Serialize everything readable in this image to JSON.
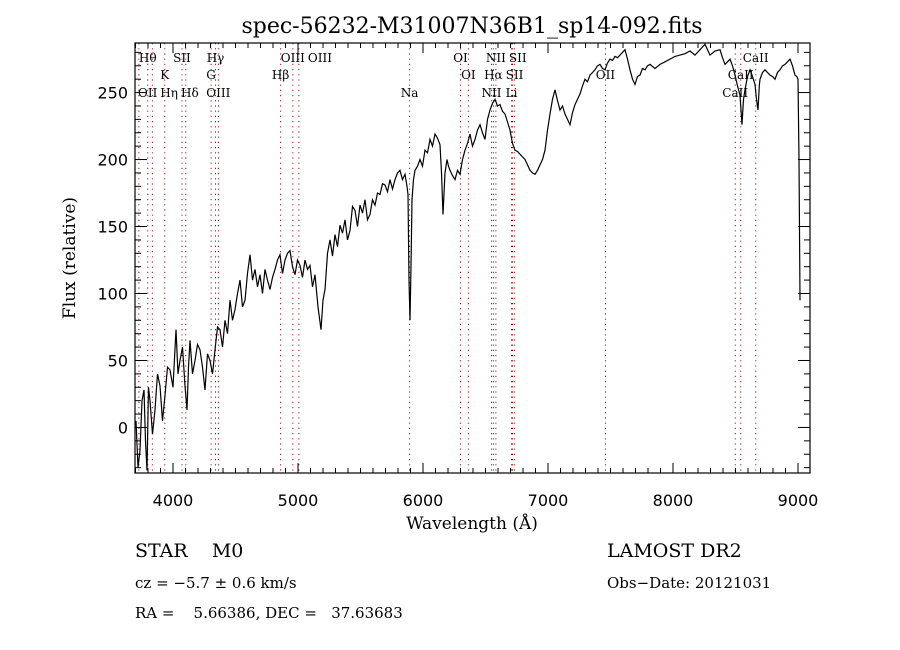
{
  "chart_data": {
    "type": "line",
    "title": "spec-56232-M31007N36B1_sp14-092.fits",
    "xlabel": "Wavelength (Å)",
    "ylabel": "Flux (relative)",
    "xlim": [
      3696,
      9096
    ],
    "ylim": [
      -34,
      287
    ],
    "xticks": [
      4000,
      5000,
      6000,
      7000,
      8000,
      9000
    ],
    "yticks": [
      0,
      50,
      100,
      150,
      200,
      250
    ],
    "grid": false,
    "series": [
      {
        "name": "spectrum",
        "points": [
          [
            3704,
            5
          ],
          [
            3720,
            -30
          ],
          [
            3736,
            -17
          ],
          [
            3752,
            20
          ],
          [
            3768,
            28
          ],
          [
            3780,
            -10
          ],
          [
            3792,
            -32
          ],
          [
            3804,
            30
          ],
          [
            3816,
            20
          ],
          [
            3836,
            -5
          ],
          [
            3856,
            13
          ],
          [
            3876,
            40
          ],
          [
            3896,
            31
          ],
          [
            3916,
            5
          ],
          [
            3936,
            24
          ],
          [
            3956,
            45
          ],
          [
            3976,
            43
          ],
          [
            4000,
            30
          ],
          [
            4024,
            73
          ],
          [
            4040,
            40
          ],
          [
            4056,
            50
          ],
          [
            4076,
            60
          ],
          [
            4096,
            31
          ],
          [
            4112,
            13
          ],
          [
            4124,
            45
          ],
          [
            4136,
            65
          ],
          [
            4156,
            40
          ],
          [
            4176,
            50
          ],
          [
            4196,
            62
          ],
          [
            4216,
            58
          ],
          [
            4236,
            45
          ],
          [
            4256,
            28
          ],
          [
            4276,
            55
          ],
          [
            4296,
            50
          ],
          [
            4316,
            40
          ],
          [
            4336,
            58
          ],
          [
            4356,
            75
          ],
          [
            4376,
            73
          ],
          [
            4396,
            60
          ],
          [
            4416,
            80
          ],
          [
            4436,
            70
          ],
          [
            4456,
            95
          ],
          [
            4476,
            80
          ],
          [
            4496,
            88
          ],
          [
            4516,
            100
          ],
          [
            4536,
            110
          ],
          [
            4556,
            90
          ],
          [
            4576,
            95
          ],
          [
            4596,
            115
          ],
          [
            4616,
            129
          ],
          [
            4636,
            110
          ],
          [
            4656,
            118
          ],
          [
            4676,
            105
          ],
          [
            4696,
            114
          ],
          [
            4716,
            100
          ],
          [
            4736,
            118
          ],
          [
            4756,
            110
          ],
          [
            4776,
            103
          ],
          [
            4796,
            112
          ],
          [
            4816,
            118
          ],
          [
            4836,
            125
          ],
          [
            4856,
            129
          ],
          [
            4876,
            115
          ],
          [
            4896,
            125
          ],
          [
            4916,
            130
          ],
          [
            4936,
            132
          ],
          [
            4956,
            120
          ],
          [
            4976,
            114
          ],
          [
            4996,
            125
          ],
          [
            5016,
            121
          ],
          [
            5036,
            112
          ],
          [
            5056,
            125
          ],
          [
            5076,
            118
          ],
          [
            5096,
            121
          ],
          [
            5116,
            105
          ],
          [
            5136,
            114
          ],
          [
            5160,
            90
          ],
          [
            5184,
            73
          ],
          [
            5200,
            95
          ],
          [
            5216,
            103
          ],
          [
            5236,
            130
          ],
          [
            5256,
            140
          ],
          [
            5276,
            128
          ],
          [
            5296,
            144
          ],
          [
            5316,
            135
          ],
          [
            5336,
            151
          ],
          [
            5356,
            145
          ],
          [
            5376,
            155
          ],
          [
            5396,
            140
          ],
          [
            5416,
            147
          ],
          [
            5436,
            165
          ],
          [
            5456,
            162
          ],
          [
            5476,
            150
          ],
          [
            5496,
            166
          ],
          [
            5516,
            160
          ],
          [
            5536,
            170
          ],
          [
            5556,
            155
          ],
          [
            5576,
            159
          ],
          [
            5596,
            170
          ],
          [
            5616,
            166
          ],
          [
            5636,
            175
          ],
          [
            5656,
            174
          ],
          [
            5676,
            182
          ],
          [
            5696,
            181
          ],
          [
            5716,
            176
          ],
          [
            5736,
            185
          ],
          [
            5756,
            178
          ],
          [
            5776,
            185
          ],
          [
            5796,
            190
          ],
          [
            5816,
            192
          ],
          [
            5836,
            185
          ],
          [
            5856,
            189
          ],
          [
            5872,
            180
          ],
          [
            5880,
            174
          ],
          [
            5888,
            110
          ],
          [
            5896,
            80
          ],
          [
            5904,
            120
          ],
          [
            5912,
            170
          ],
          [
            5924,
            185
          ],
          [
            5936,
            192
          ],
          [
            5956,
            195
          ],
          [
            5976,
            200
          ],
          [
            5996,
            195
          ],
          [
            6016,
            207
          ],
          [
            6036,
            205
          ],
          [
            6056,
            215
          ],
          [
            6076,
            210
          ],
          [
            6096,
            219
          ],
          [
            6116,
            216
          ],
          [
            6136,
            211
          ],
          [
            6148,
            190
          ],
          [
            6160,
            159
          ],
          [
            6176,
            190
          ],
          [
            6192,
            200
          ],
          [
            6204,
            195
          ],
          [
            6216,
            192
          ],
          [
            6236,
            188
          ],
          [
            6256,
            185
          ],
          [
            6276,
            192
          ],
          [
            6296,
            189
          ],
          [
            6316,
            200
          ],
          [
            6336,
            207
          ],
          [
            6356,
            212
          ],
          [
            6376,
            219
          ],
          [
            6396,
            210
          ],
          [
            6416,
            215
          ],
          [
            6436,
            222
          ],
          [
            6456,
            226
          ],
          [
            6476,
            220
          ],
          [
            6496,
            215
          ],
          [
            6516,
            230
          ],
          [
            6536,
            237
          ],
          [
            6556,
            242
          ],
          [
            6576,
            245
          ],
          [
            6596,
            240
          ],
          [
            6616,
            241
          ],
          [
            6636,
            236
          ],
          [
            6656,
            234
          ],
          [
            6676,
            228
          ],
          [
            6696,
            222
          ],
          [
            6716,
            212
          ],
          [
            6736,
            207
          ],
          [
            6756,
            206
          ],
          [
            6776,
            204
          ],
          [
            6796,
            202
          ],
          [
            6816,
            200
          ],
          [
            6836,
            196
          ],
          [
            6856,
            192
          ],
          [
            6876,
            190
          ],
          [
            6896,
            189
          ],
          [
            6916,
            192
          ],
          [
            6936,
            196
          ],
          [
            6956,
            200
          ],
          [
            6976,
            207
          ],
          [
            6996,
            222
          ],
          [
            7016,
            234
          ],
          [
            7036,
            245
          ],
          [
            7056,
            252
          ],
          [
            7076,
            244
          ],
          [
            7096,
            237
          ],
          [
            7116,
            240
          ],
          [
            7136,
            234
          ],
          [
            7156,
            230
          ],
          [
            7176,
            226
          ],
          [
            7196,
            235
          ],
          [
            7216,
            241
          ],
          [
            7236,
            245
          ],
          [
            7256,
            249
          ],
          [
            7276,
            255
          ],
          [
            7296,
            260
          ],
          [
            7316,
            258
          ],
          [
            7336,
            263
          ],
          [
            7356,
            265
          ],
          [
            7376,
            267
          ],
          [
            7396,
            270
          ],
          [
            7416,
            271
          ],
          [
            7436,
            268
          ],
          [
            7456,
            267
          ],
          [
            7476,
            272
          ],
          [
            7496,
            275
          ],
          [
            7516,
            274
          ],
          [
            7536,
            277
          ],
          [
            7556,
            276
          ],
          [
            7576,
            278
          ],
          [
            7596,
            280
          ],
          [
            7616,
            282
          ],
          [
            7636,
            275
          ],
          [
            7656,
            267
          ],
          [
            7676,
            260
          ],
          [
            7696,
            256
          ],
          [
            7716,
            262
          ],
          [
            7736,
            263
          ],
          [
            7756,
            268
          ],
          [
            7776,
            267
          ],
          [
            7796,
            270
          ],
          [
            7816,
            271
          ],
          [
            7856,
            268
          ],
          [
            7896,
            271
          ],
          [
            7936,
            273
          ],
          [
            7976,
            275
          ],
          [
            8016,
            277
          ],
          [
            8056,
            278
          ],
          [
            8096,
            279
          ],
          [
            8136,
            281
          ],
          [
            8176,
            278
          ],
          [
            8216,
            282
          ],
          [
            8236,
            284
          ],
          [
            8256,
            286
          ],
          [
            8276,
            282
          ],
          [
            8296,
            278
          ],
          [
            8336,
            281
          ],
          [
            8376,
            282
          ],
          [
            8396,
            276
          ],
          [
            8416,
            271
          ],
          [
            8436,
            273
          ],
          [
            8456,
            275
          ],
          [
            8476,
            270
          ],
          [
            8496,
            263
          ],
          [
            8516,
            255
          ],
          [
            8536,
            248
          ],
          [
            8552,
            226
          ],
          [
            8564,
            245
          ],
          [
            8576,
            252
          ],
          [
            8596,
            262
          ],
          [
            8616,
            267
          ],
          [
            8636,
            262
          ],
          [
            8656,
            256
          ],
          [
            8668,
            245
          ],
          [
            8680,
            237
          ],
          [
            8690,
            255
          ],
          [
            8696,
            260
          ],
          [
            8716,
            265
          ],
          [
            8736,
            267
          ],
          [
            8756,
            265
          ],
          [
            8776,
            263
          ],
          [
            8796,
            262
          ],
          [
            8816,
            260
          ],
          [
            8836,
            265
          ],
          [
            8856,
            267
          ],
          [
            8876,
            270
          ],
          [
            8896,
            271
          ],
          [
            8916,
            273
          ],
          [
            8936,
            275
          ],
          [
            8956,
            270
          ],
          [
            8976,
            263
          ],
          [
            8990,
            262
          ],
          [
            9000,
            260
          ],
          [
            9008,
            200
          ],
          [
            9016,
            95
          ]
        ]
      }
    ],
    "lines": [
      {
        "label": "Hθ",
        "wavelength": 3798,
        "row": 1
      },
      {
        "label": "SII",
        "wavelength": 4072,
        "row": 1
      },
      {
        "label": "Hγ",
        "wavelength": 4340,
        "row": 1
      },
      {
        "label": "OIII",
        "wavelength": 5007,
        "row": 1
      },
      {
        "label": "OI",
        "wavelength": 6300,
        "row": 1
      },
      {
        "label": "NII",
        "wavelength": 6583,
        "row": 1
      },
      {
        "label": "SII",
        "wavelength": 6716,
        "row": 1
      },
      {
        "label": "CaII",
        "wavelength": 8662,
        "row": 1
      },
      {
        "label": "K",
        "wavelength": 3934,
        "row": 2
      },
      {
        "label": "G",
        "wavelength": 4305,
        "row": 2
      },
      {
        "label": "Hβ",
        "wavelength": 4861,
        "row": 2
      },
      {
        "label": "OIII",
        "wavelength": 4959,
        "row": 0
      },
      {
        "label": "OI",
        "wavelength": 6363,
        "row": 2
      },
      {
        "label": "Hα",
        "wavelength": 6563,
        "row": 2
      },
      {
        "label": "SII",
        "wavelength": 6731,
        "row": 2
      },
      {
        "label": "OII",
        "wavelength": 7460,
        "row": 2
      },
      {
        "label": "CaII",
        "wavelength": 8542,
        "row": 2
      },
      {
        "label": "OII",
        "wavelength": 3727,
        "row": 3
      },
      {
        "label": "Hη",
        "wavelength": 3835,
        "row": 3
      },
      {
        "label": "Hδ",
        "wavelength": 4102,
        "row": 3
      },
      {
        "label": "OIII",
        "wavelength": 4363,
        "row": 3
      },
      {
        "label": "Na",
        "wavelength": 5893,
        "row": 3
      },
      {
        "label": "NII",
        "wavelength": 6548,
        "row": 3
      },
      {
        "label": "Li",
        "wavelength": 6708,
        "row": 3
      },
      {
        "label": "CaII",
        "wavelength": 8498,
        "row": 3
      }
    ],
    "colors": {
      "spectrum": "#000000",
      "line_marker": "#a01010",
      "axes": "#000000"
    }
  },
  "info": {
    "object_class": "STAR    M0",
    "survey": "LAMOST DR2",
    "redshift": "cz = −5.7 ± 0.6 km/s",
    "obs_date": "Obs−Date: 20121031",
    "coords": "RA =    5.66386, DEC =   37.63683"
  }
}
